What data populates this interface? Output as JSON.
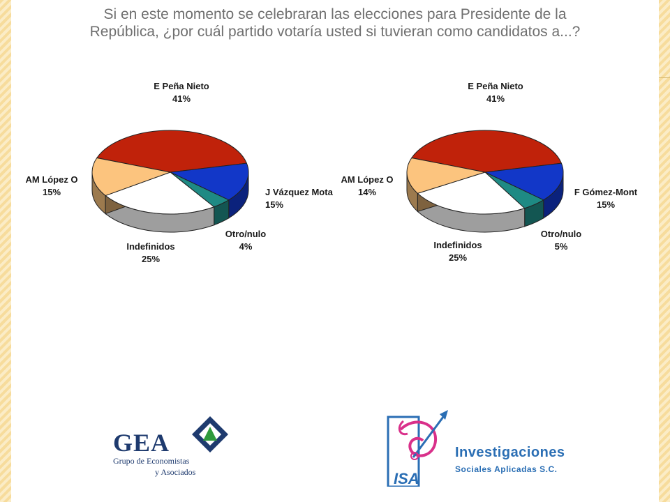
{
  "title": {
    "line1": "Si en este momento se celebraran las elecciones para Presidente de la",
    "line2": "República, ¿por cuál partido votaría usted si tuvieran como candidatos a...?"
  },
  "chart_data": [
    {
      "type": "pie",
      "slices": [
        {
          "label": "E Peña Nieto",
          "value": 41,
          "value_label": "41%",
          "color": "#c0220a"
        },
        {
          "label": "J Vázquez Mota",
          "value": 15,
          "value_label": "15%",
          "color": "#1237c8"
        },
        {
          "label": "Otro/nulo",
          "value": 4,
          "value_label": "4%",
          "color": "#1e8a84"
        },
        {
          "label": "Indefinidos",
          "value": 25,
          "value_label": "25%",
          "color": "#ffffff"
        },
        {
          "label": "AM López O",
          "value": 15,
          "value_label": "15%",
          "color": "#fcc47e"
        }
      ]
    },
    {
      "type": "pie",
      "slices": [
        {
          "label": "E Peña Nieto",
          "value": 41,
          "value_label": "41%",
          "color": "#c0220a"
        },
        {
          "label": "F Gómez-Mont",
          "value": 15,
          "value_label": "15%",
          "color": "#1237c8"
        },
        {
          "label": "Otro/nulo",
          "value": 5,
          "value_label": "5%",
          "color": "#1e8a84"
        },
        {
          "label": "Indefinidos",
          "value": 25,
          "value_label": "25%",
          "color": "#ffffff"
        },
        {
          "label": "AM López O",
          "value": 14,
          "value_label": "14%",
          "color": "#fcc47e"
        }
      ]
    }
  ],
  "logos": {
    "gea": {
      "word": "GEA",
      "line1": "Grupo de Economistas",
      "line2": "y Asociados"
    },
    "isa": {
      "name1": "Investigaciones",
      "name2": "Sociales Aplicadas S.C.",
      "mark_text": "ISA"
    }
  }
}
